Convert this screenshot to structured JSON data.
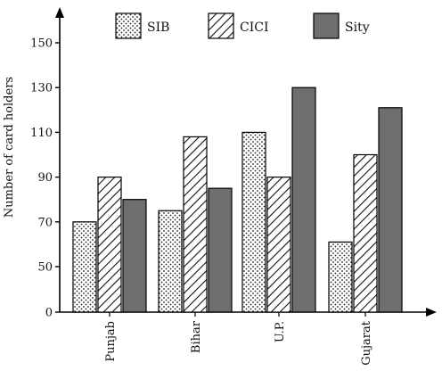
{
  "chart_data": {
    "type": "bar",
    "ylabel": "Number of card holders",
    "xlabel": "",
    "ylim": [
      0,
      160
    ],
    "y_ticks": [
      0,
      50,
      70,
      90,
      110,
      130,
      150
    ],
    "y_axis_break": "between 0 and 50",
    "categories": [
      "Punjab",
      "Bihar",
      "U.P.",
      "Gujarat"
    ],
    "category_label_rotation": "vertical",
    "series": [
      {
        "name": "SIB",
        "pattern": "dotted",
        "color": "#ffffff",
        "values": [
          70,
          75,
          110,
          61
        ]
      },
      {
        "name": "CICI",
        "pattern": "diagonal-hatch",
        "color": "#ffffff",
        "values": [
          90,
          108,
          90,
          100
        ]
      },
      {
        "name": "Sity",
        "pattern": "solid",
        "color": "#6e6e6e",
        "values": [
          80,
          85,
          130,
          121
        ]
      }
    ],
    "legend_placement": "top-center",
    "grid": false
  }
}
